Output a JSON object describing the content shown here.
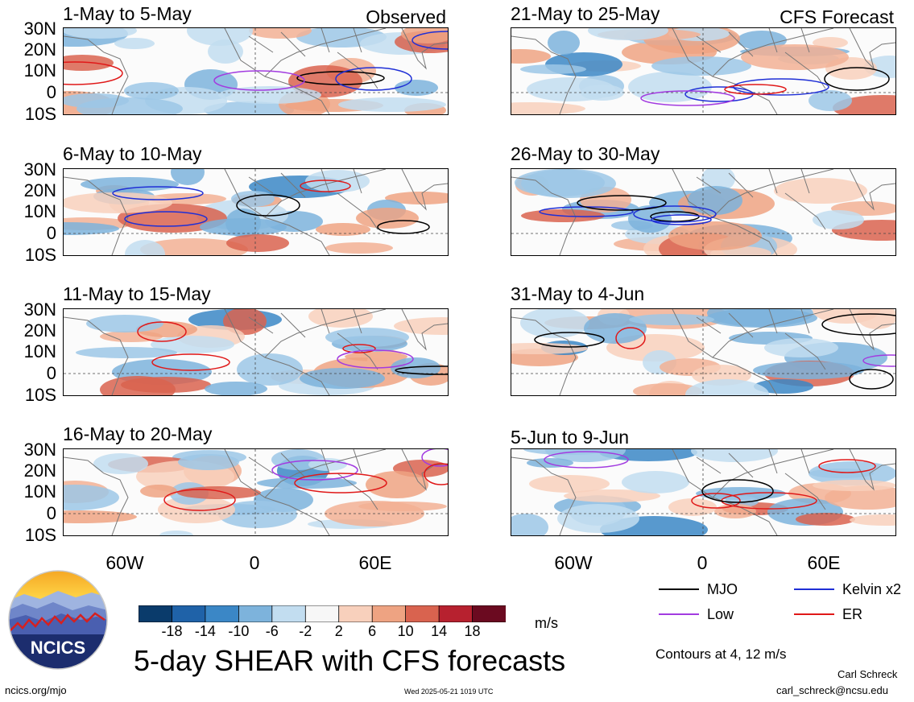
{
  "panels": [
    {
      "title": "1-May to 5-May",
      "corner": "Observed"
    },
    {
      "title": "6-May to 10-May",
      "corner": ""
    },
    {
      "title": "11-May to 15-May",
      "corner": ""
    },
    {
      "title": "16-May to 20-May",
      "corner": ""
    },
    {
      "title": "21-May to 25-May",
      "corner": "CFS Forecast"
    },
    {
      "title": "26-May to 30-May",
      "corner": ""
    },
    {
      "title": "31-May to 4-Jun",
      "corner": ""
    },
    {
      "title": "5-Jun to 9-Jun",
      "corner": ""
    }
  ],
  "lat_labels": [
    "30N",
    "20N",
    "10N",
    "0",
    "10S"
  ],
  "lon_labels": [
    "60W",
    "0",
    "60E"
  ],
  "colorbar": {
    "ticks": [
      "-18",
      "-14",
      "-10",
      "-6",
      "-2",
      "2",
      "6",
      "10",
      "14",
      "18"
    ],
    "colors": [
      "#0a3b6b",
      "#1f62a8",
      "#3b87c6",
      "#7db3dc",
      "#c2ddf0",
      "#f7f7f7",
      "#f8d0bc",
      "#eea382",
      "#d9634f",
      "#b7212f",
      "#6b0a20"
    ],
    "units": "m/s"
  },
  "legend": {
    "items": [
      {
        "label": "MJO",
        "color": "#000000"
      },
      {
        "label": "Kelvin x2",
        "color": "#1f2fd6"
      },
      {
        "label": "Low",
        "color": "#a23be0"
      },
      {
        "label": "ER",
        "color": "#e01818"
      }
    ],
    "contours_note": "Contours at 4, 12 m/s"
  },
  "logo": {
    "text": "NCICS"
  },
  "main_title": "5-day SHEAR with CFS forecasts",
  "footer": {
    "left": "ncics.org/mjo",
    "center": "Wed 2025-05-21 1019 UTC",
    "author": "Carl Schreck",
    "email": "carl_schreck@ncsu.edu"
  }
}
